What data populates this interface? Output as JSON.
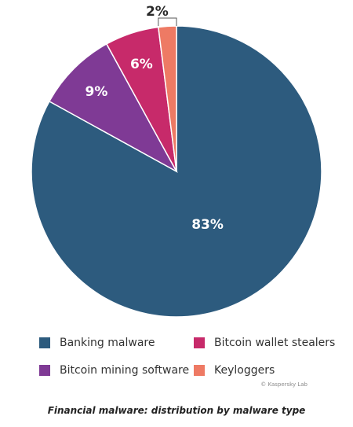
{
  "chart_data": {
    "type": "pie",
    "categories": [
      "Banking malware",
      "Bitcoin wallet stealers",
      "Bitcoin mining software",
      "Keyloggers"
    ],
    "values": [
      83,
      6,
      9,
      2
    ],
    "data_labels": [
      "83%",
      "6%",
      "9%",
      "2%"
    ],
    "colors": [
      "#2d5b7e",
      "#c72a6a",
      "#7f3a95",
      "#ee7a64"
    ],
    "title": "",
    "legend_position": "bottom"
  },
  "credit": "© Kaspersky Lab",
  "caption": "Financial malware: distribution by malware type"
}
